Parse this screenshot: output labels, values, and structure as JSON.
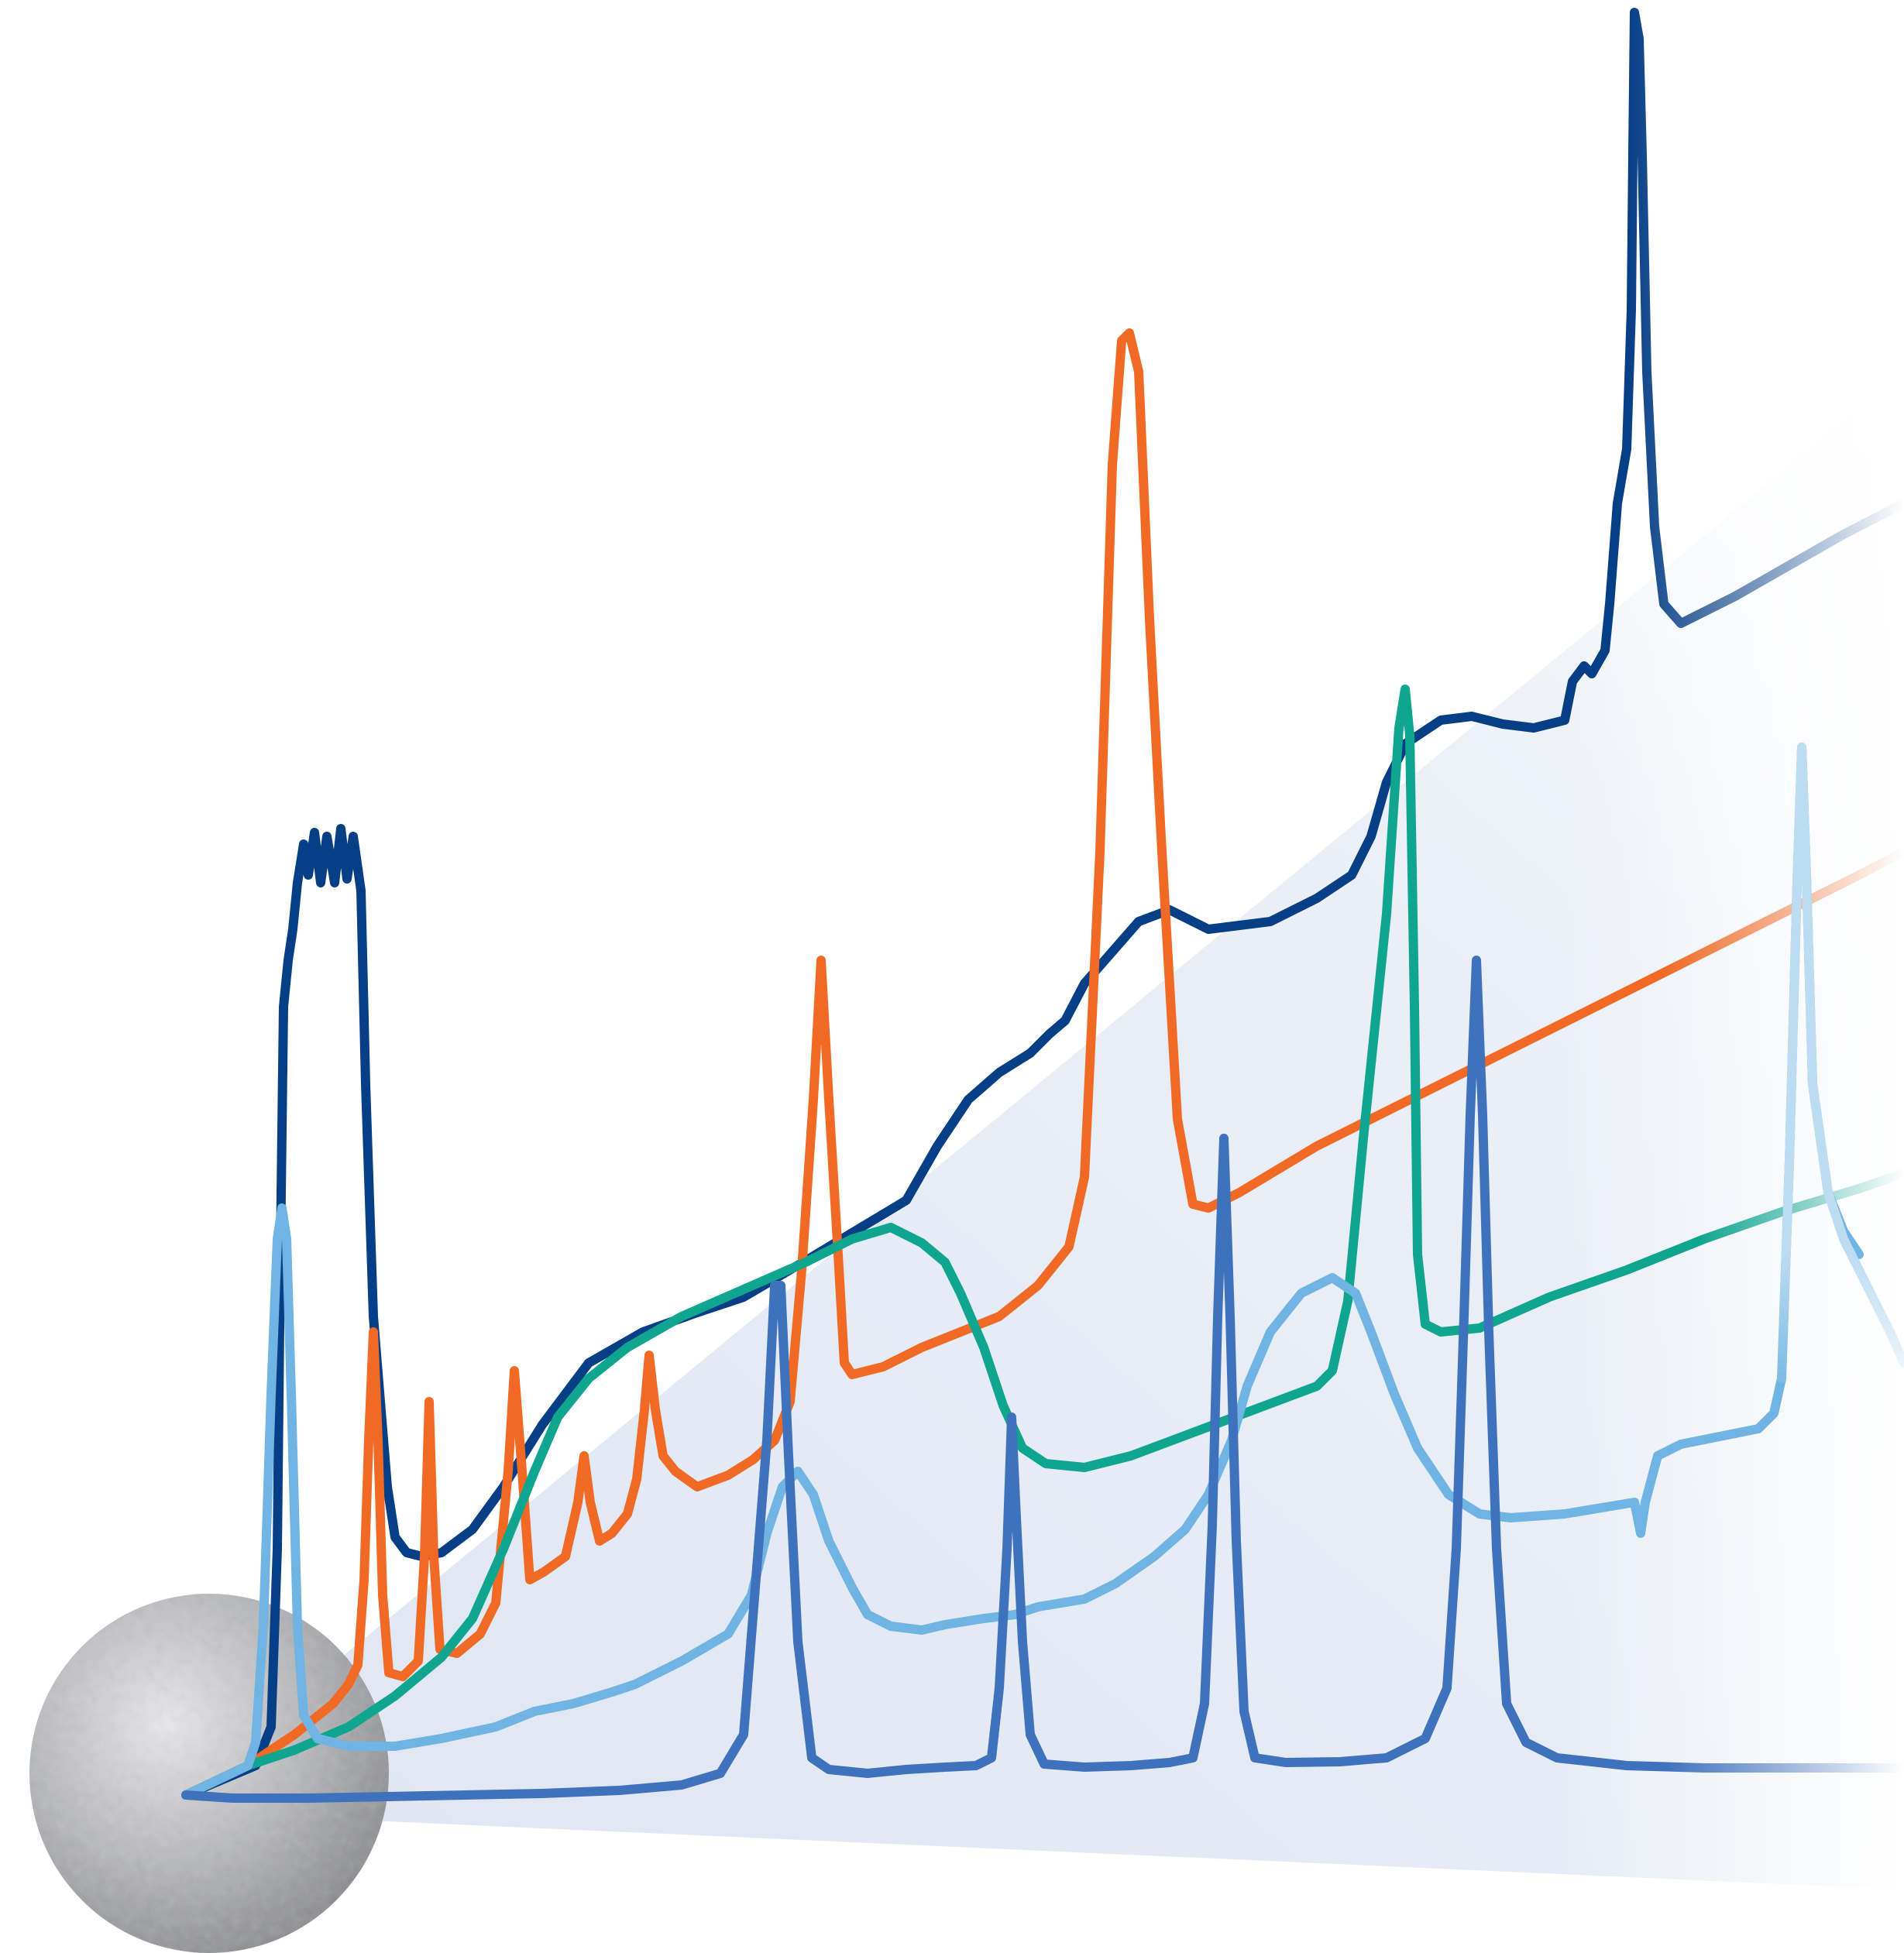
{
  "illustration": {
    "subject": "chromatography-traces-over-particle",
    "colors": {
      "backdrop_wedge": "#dfe6f2",
      "particle_light": "#e8e8ea",
      "particle_dark": "#8a8b8f",
      "trace_navy": "#073f86",
      "trace_orange": "#f06a25",
      "trace_teal": "#0fa58f",
      "trace_sky": "#6fb4e2",
      "trace_blue": "#3e72bd",
      "trace_pale": "#bcdcf1"
    }
  }
}
